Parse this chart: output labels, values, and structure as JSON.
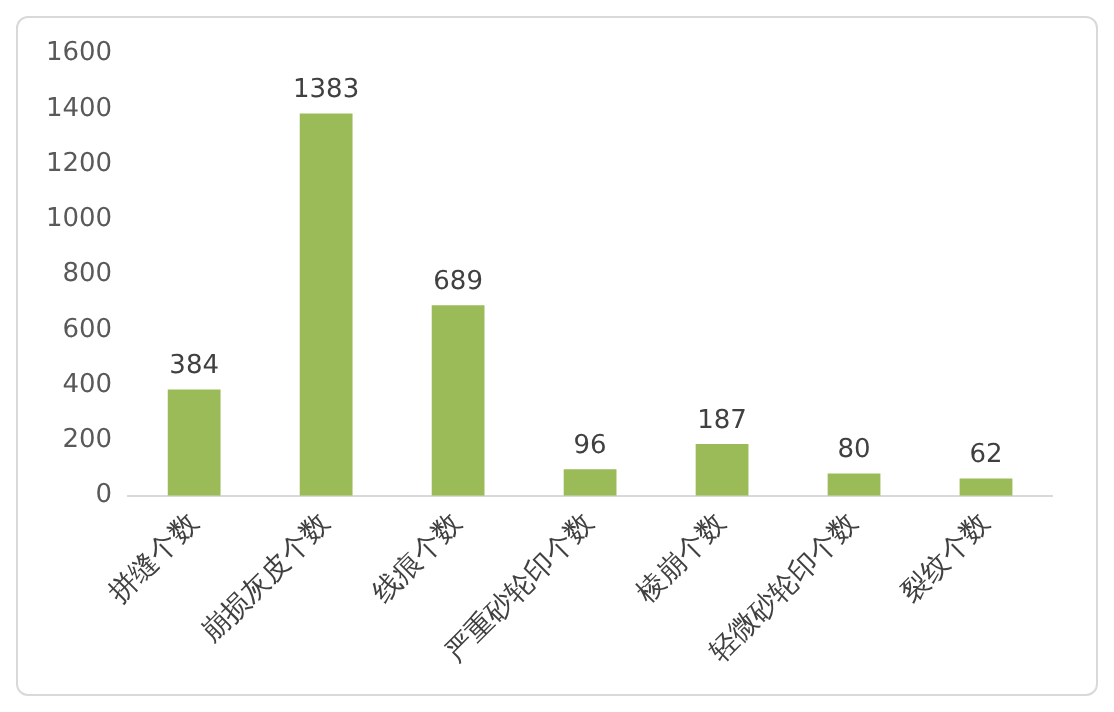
{
  "chart_data": {
    "type": "bar",
    "categories": [
      "拼缝个数",
      "崩损灰皮个数",
      "线痕个数",
      "严重砂轮印个数",
      "棱崩个数",
      "轻微砂轮印个数",
      "裂纹个数"
    ],
    "values": [
      384,
      1383,
      689,
      96,
      187,
      80,
      62
    ],
    "color": "#9bbb59",
    "ylim": [
      0,
      1600
    ],
    "yticks": [
      0,
      200,
      400,
      600,
      800,
      1000,
      1200,
      1400,
      1600
    ],
    "grid": false,
    "legend": false,
    "data_labels": true
  }
}
